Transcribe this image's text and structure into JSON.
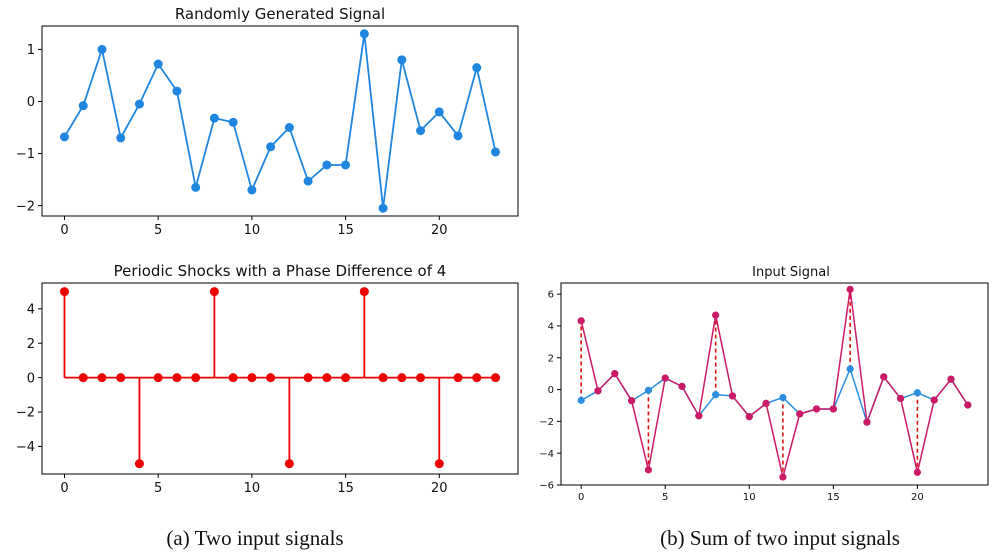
{
  "chart_data": [
    {
      "type": "line",
      "title": "Randomly Generated Signal",
      "x": [
        0,
        1,
        2,
        3,
        4,
        5,
        6,
        7,
        8,
        9,
        10,
        11,
        12,
        13,
        14,
        15,
        16,
        17,
        18,
        19,
        20,
        21,
        22,
        23
      ],
      "values": [
        -0.68,
        -0.08,
        1.0,
        -0.7,
        -0.05,
        0.72,
        0.2,
        -1.65,
        -0.32,
        -0.4,
        -1.7,
        -0.87,
        -0.5,
        -1.53,
        -1.22,
        -1.22,
        1.3,
        -2.05,
        0.8,
        -0.56,
        -0.2,
        -0.66,
        0.65,
        -0.97
      ],
      "xlim": [
        -1.2,
        24.2
      ],
      "ylim": [
        -2.2,
        1.45
      ],
      "xticks": [
        0,
        5,
        10,
        15,
        20
      ],
      "yticks": [
        -2,
        -1,
        0,
        1
      ],
      "color": "#1f86e0"
    },
    {
      "type": "stem",
      "title": "Periodic Shocks with a Phase Difference of 4",
      "x": [
        0,
        1,
        2,
        3,
        4,
        5,
        6,
        7,
        8,
        9,
        10,
        11,
        12,
        13,
        14,
        15,
        16,
        17,
        18,
        19,
        20,
        21,
        22,
        23
      ],
      "values": [
        5,
        0,
        0,
        0,
        -5,
        0,
        0,
        0,
        5,
        0,
        0,
        0,
        -5,
        0,
        0,
        0,
        5,
        0,
        0,
        0,
        -5,
        0,
        0,
        0
      ],
      "xlim": [
        -1.2,
        24.2
      ],
      "ylim": [
        -5.6,
        5.5
      ],
      "xticks": [
        0,
        5,
        10,
        15,
        20
      ],
      "yticks": [
        -4,
        -2,
        0,
        2,
        4
      ],
      "color": "#ee0000"
    },
    {
      "type": "line",
      "title": "Input Signal",
      "x": [
        0,
        1,
        2,
        3,
        4,
        5,
        6,
        7,
        8,
        9,
        10,
        11,
        12,
        13,
        14,
        15,
        16,
        17,
        18,
        19,
        20,
        21,
        22,
        23
      ],
      "series": [
        {
          "values": [
            -0.68,
            -0.08,
            1.0,
            -0.7,
            -0.05,
            0.72,
            0.2,
            -1.65,
            -0.32,
            -0.4,
            -1.7,
            -0.87,
            -0.5,
            -1.53,
            -1.22,
            -1.22,
            1.3,
            -2.05,
            0.8,
            -0.56,
            -0.2,
            -0.66,
            0.65,
            -0.97
          ],
          "color": "#2a8fe0"
        },
        {
          "values": [
            4.32,
            -0.08,
            1.0,
            -0.7,
            -5.05,
            0.72,
            0.2,
            -1.65,
            4.68,
            -0.4,
            -1.7,
            -0.87,
            -5.5,
            -1.53,
            -1.22,
            -1.22,
            6.3,
            -2.05,
            0.8,
            -0.56,
            -5.2,
            -0.66,
            0.65,
            -0.97
          ],
          "color": "#cc1a66"
        }
      ],
      "difference_lines": {
        "color": "#dd1111",
        "style": "dashed"
      },
      "xlim": [
        -1.2,
        24.2
      ],
      "ylim": [
        -6.0,
        6.7
      ],
      "xticks": [
        0,
        5,
        10,
        15,
        20
      ],
      "yticks": [
        -6,
        -4,
        -2,
        0,
        2,
        4,
        6
      ]
    }
  ],
  "captions": {
    "a": "(a) Two input signals",
    "b": "(b) Sum of two input signals"
  }
}
